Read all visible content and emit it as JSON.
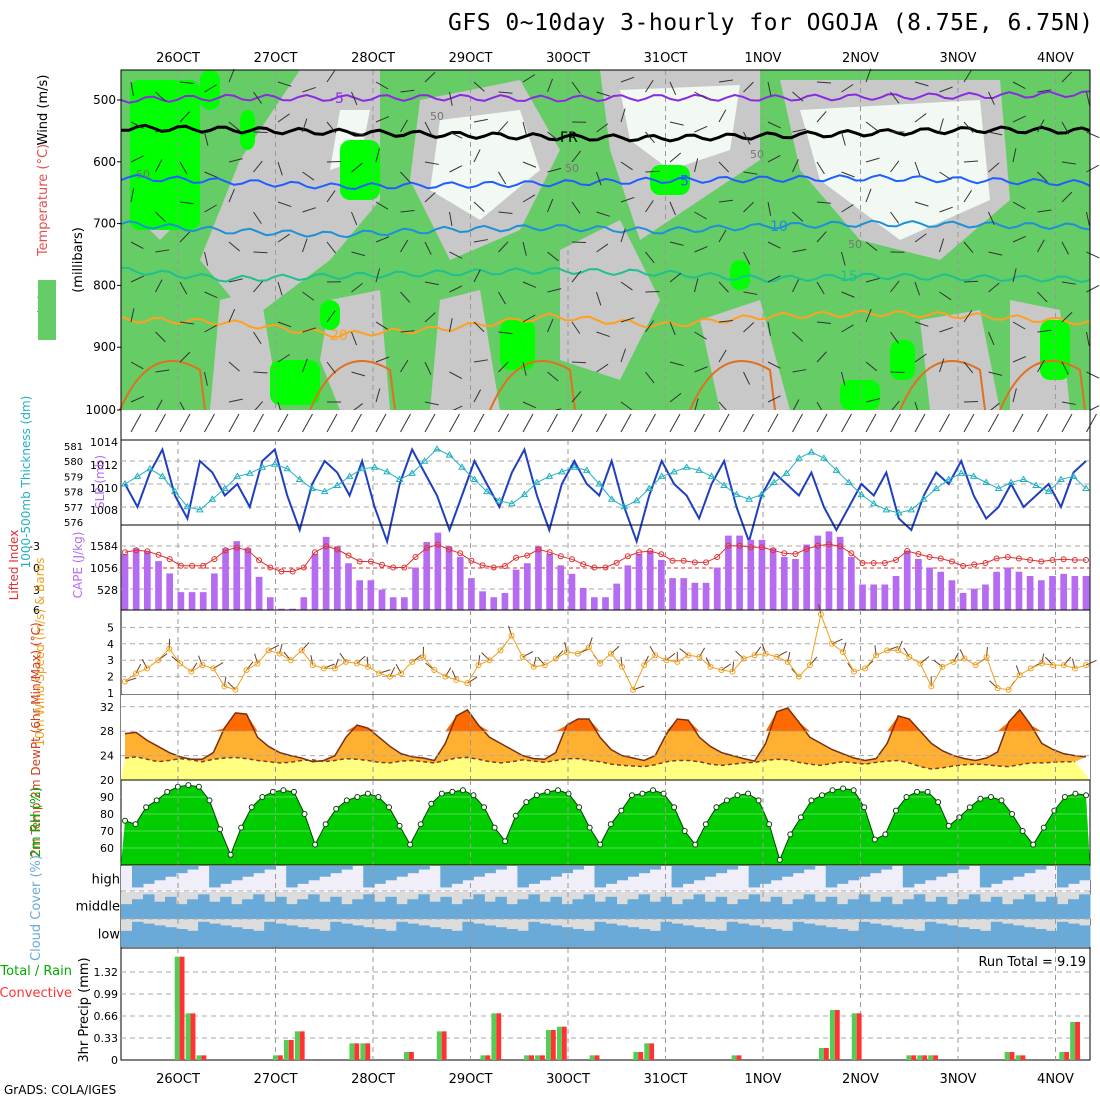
{
  "title": "GFS 0~10day 3-hourly for OGOJA (8.75E, 6.75N)",
  "credit": "GrADS: COLA/IGES",
  "dates": [
    "26OCT",
    "27OCT",
    "28OCT",
    "29OCT",
    "30OCT",
    "31OCT",
    "1NOV",
    "2NOV",
    "3NOV",
    "4NOV"
  ],
  "colors": {
    "rh_light": "#cfe8cf",
    "rh_mid": "#66cc66",
    "rh_bright": "#00ff00",
    "grey": "#c8c8c8",
    "lifted": "#e03030",
    "cape": "#b56cf0",
    "slp": "#1f3fbf",
    "thick": "#22b0c0",
    "wind10": "#f0a020",
    "temp_dark": "#ff6a00",
    "temp_mid": "#ffb030",
    "dew_fill": "#ffff80",
    "rh2m": "#00aa00",
    "cloud": "#6aaad8",
    "cloud_grey": "#dcdcdc",
    "precip_total": "#55cc55",
    "precip_conv": "#ff3333"
  },
  "chart_data": [
    {
      "type": "contour",
      "panel": "upper-air",
      "ylabel": "(millibars)",
      "legend": [
        "RH (%)",
        "Temperature (°C)",
        "Wind (m/s)"
      ],
      "y_ticks": [
        500,
        600,
        700,
        800,
        900,
        1000
      ],
      "temperature_labels": [
        "-5",
        "FR",
        "5",
        "10",
        "15",
        "20"
      ],
      "rh_labels": [
        "50"
      ],
      "isotherms": [
        {
          "label": "-5",
          "color": "#8a2be2",
          "levels": [
            500,
            496,
            497,
            496,
            498,
            496,
            497,
            495,
            493,
            490
          ]
        },
        {
          "label": "FR",
          "color": "#000000",
          "levels": [
            545,
            548,
            552,
            556,
            560,
            562,
            558,
            553,
            548,
            550
          ]
        },
        {
          "label": "5",
          "color": "#1f5fff",
          "levels": [
            625,
            632,
            640,
            638,
            635,
            630,
            628,
            626,
            630,
            635
          ]
        },
        {
          "label": "10",
          "color": "#1e90d8",
          "levels": [
            700,
            712,
            718,
            710,
            706,
            712,
            704,
            700,
            702,
            705
          ]
        },
        {
          "label": "15",
          "color": "#20c090",
          "levels": [
            775,
            790,
            785,
            780,
            776,
            780,
            790,
            785,
            788,
            790
          ]
        },
        {
          "label": "20",
          "color": "#ffa020",
          "levels": [
            855,
            860,
            880,
            870,
            850,
            865,
            850,
            845,
            850,
            860
          ]
        }
      ]
    },
    {
      "type": "line",
      "panel": "slp-thickness",
      "y_left_label": "1000-500mb Thickness (dm)",
      "y_right_label": "SLP (mb)",
      "thickness_ticks": [
        "581",
        "580",
        "579",
        "578",
        "577",
        "576"
      ],
      "slp_ticks": [
        "1014",
        "1012",
        "1010",
        "1008"
      ],
      "slp": [
        1010,
        1008,
        1011,
        1013,
        1009,
        1007,
        1012,
        1011,
        1009,
        1010,
        1008,
        1012,
        1013,
        1009,
        1006,
        1010,
        1012,
        1011,
        1009,
        1012,
        1008,
        1005,
        1010,
        1013,
        1011,
        1009,
        1006,
        1009,
        1012,
        1010,
        1008,
        1011,
        1013,
        1009,
        1006,
        1010,
        1012,
        1010,
        1009,
        1012,
        1008,
        1005,
        1009,
        1012,
        1010,
        1009,
        1007,
        1010,
        1012,
        1008,
        1005,
        1009,
        1011,
        1010,
        1009,
        1011,
        1008,
        1006,
        1008,
        1010,
        1009,
        1011,
        1007,
        1006,
        1009,
        1011,
        1010,
        1012,
        1009,
        1007,
        1008,
        1010,
        1008,
        1009,
        1010,
        1008,
        1011,
        1012
      ],
      "thickness": [
        578.5,
        579,
        579.5,
        579,
        578,
        577,
        576.8,
        577.5,
        578.2,
        579,
        579.2,
        579.6,
        579.8,
        579.5,
        578.8,
        578.2,
        578.0,
        578.4,
        579.0,
        579.5,
        579.6,
        579.3,
        578.8,
        579.2,
        580.0,
        580.8,
        580.4,
        579.6,
        578.8,
        578.0,
        577.4,
        577.2,
        577.8,
        578.6,
        579.0,
        579.3,
        579.6,
        579.4,
        578.5,
        577.5,
        577.0,
        577.4,
        578.2,
        579.0,
        579.3,
        579.6,
        579.4,
        579.0,
        578.4,
        577.8,
        577.5,
        577.8,
        578.6,
        579.2,
        580.2,
        580.6,
        580.2,
        579.4,
        578.6,
        577.8,
        577.2,
        576.8,
        576.6,
        576.8,
        577.5,
        578.2,
        578.8,
        579.2,
        579.0,
        578.6,
        578.2,
        578.6,
        578.8,
        578.4,
        578.0,
        578.8,
        579.0,
        578.2
      ]
    },
    {
      "type": "bar",
      "panel": "cape-lifted",
      "y_left_label": "Lifted Index",
      "y_right_label": "CAPE (J/kg)",
      "lifted_ticks": [
        "-3",
        "0",
        "3",
        "6"
      ],
      "cape_ticks": [
        "1584",
        "1056",
        "528"
      ],
      "cape": [
        1320,
        1450,
        1380,
        1150,
        860,
        420,
        420,
        420,
        860,
        1450,
        1620,
        1450,
        780,
        300,
        30,
        30,
        300,
        1320,
        1720,
        1500,
        1100,
        700,
        700,
        480,
        300,
        300,
        1000,
        1600,
        1820,
        1500,
        1250,
        750,
        440,
        300,
        400,
        950,
        1100,
        1500,
        1320,
        1050,
        850,
        520,
        300,
        300,
        620,
        1050,
        1320,
        1400,
        1180,
        750,
        750,
        640,
        640,
        1000,
        1750,
        1750,
        1650,
        1650,
        1450,
        1250,
        1200,
        1540,
        1750,
        1850,
        1720,
        1250,
        600,
        600,
        600,
        800,
        1400,
        1200,
        1000,
        900,
        700,
        400,
        500,
        600,
        900,
        1000,
        900,
        800,
        700,
        800,
        850,
        800,
        800
      ]
    },
    {
      "type": "line",
      "panel": "wind10m",
      "ylabel": "10m Wind Speed (m/s) & Barbs",
      "y_ticks": [
        "5",
        "4",
        "3",
        "2",
        "1"
      ],
      "speed": [
        1.7,
        2.2,
        2.5,
        3.0,
        3.7,
        2.8,
        2.3,
        2.7,
        2.5,
        1.4,
        1.2,
        2.4,
        2.8,
        3.6,
        3.4,
        3.0,
        3.6,
        2.7,
        2.5,
        2.5,
        2.9,
        2.8,
        2.6,
        2.2,
        2.0,
        2.2,
        2.9,
        3.2,
        2.4,
        2.0,
        1.8,
        1.6,
        2.7,
        3.0,
        3.6,
        4.5,
        3.2,
        2.6,
        2.7,
        3.1,
        3.5,
        3.4,
        3.8,
        2.8,
        3.4,
        2.6,
        1.2,
        2.7,
        3.3,
        3.0,
        2.9,
        3.3,
        3.2,
        2.6,
        2.4,
        2.3,
        3.1,
        3.3,
        3.4,
        3.2,
        2.9,
        2.0,
        2.7,
        5.8,
        4.0,
        3.5,
        2.3,
        2.5,
        3.3,
        3.6,
        3.6,
        3.2,
        2.8,
        1.4,
        2.6,
        2.9,
        3.1,
        2.7,
        3.2,
        1.3,
        1.2,
        2.1,
        2.5,
        2.8,
        2.7,
        2.7,
        2.5,
        2.7
      ]
    },
    {
      "type": "area",
      "panel": "temperature",
      "ylabel": "2m Temp 2m DewPt (6hr Min/Max) (°C)",
      "y_ticks": [
        "32",
        "28",
        "24",
        "20"
      ],
      "temp": [
        27.6,
        27.8,
        26.5,
        25.5,
        24.5,
        23.8,
        23.4,
        23.4,
        24.5,
        28.5,
        31.0,
        30.8,
        27.0,
        25.5,
        24.5,
        24.0,
        23.6,
        23.0,
        23.2,
        24.0,
        27.0,
        29.0,
        28.5,
        27.0,
        25.5,
        24.3,
        23.8,
        23.6,
        23.2,
        26.0,
        30.5,
        31.5,
        29.0,
        27.0,
        26.0,
        25.0,
        24.0,
        23.5,
        23.4,
        24.5,
        29.0,
        30.0,
        30.0,
        27.0,
        25.0,
        24.0,
        23.6,
        23.2,
        24.0,
        27.5,
        30.0,
        29.8,
        27.0,
        25.5,
        24.5,
        24.0,
        23.5,
        23.1,
        26.0,
        31.2,
        31.8,
        29.5,
        27.0,
        26.0,
        25.0,
        24.3,
        23.6,
        23.2,
        23.5,
        26.0,
        30.5,
        30.0,
        28.0,
        26.0,
        24.8,
        24.0,
        23.5,
        23.2,
        23.6,
        24.6,
        29.5,
        31.5,
        29.0,
        26.0,
        25.0,
        24.3,
        24.0,
        23.8
      ],
      "dewpt": [
        23.6,
        23.8,
        23.4,
        23.0,
        23.2,
        23.5,
        23.3,
        23.0,
        23.4,
        23.6,
        23.7,
        23.5,
        23.2,
        23.0,
        22.8,
        22.9,
        23.2,
        23.3,
        23.0,
        23.2,
        23.5,
        23.4,
        23.2,
        22.9,
        22.8,
        23.1,
        23.2,
        23.0,
        22.8,
        23.2,
        23.6,
        23.7,
        23.4,
        23.0,
        22.8,
        23.0,
        23.3,
        23.1,
        22.9,
        23.2,
        23.5,
        23.5,
        23.2,
        23.0,
        22.6,
        22.4,
        22.3,
        22.2,
        22.5,
        23.0,
        23.2,
        23.2,
        23.0,
        22.6,
        22.4,
        22.6,
        22.8,
        22.9,
        23.2,
        23.4,
        23.3,
        22.9,
        22.6,
        22.4,
        22.7,
        23.0,
        22.8,
        22.6,
        22.9,
        23.1,
        23.2,
        22.8,
        22.2,
        21.8,
        22.0,
        22.3,
        22.5,
        22.6,
        22.5,
        22.3,
        22.2,
        22.5,
        22.8,
        22.8,
        22.9,
        23.0,
        23.0
      ]
    },
    {
      "type": "area",
      "panel": "rh2m",
      "ylabel": "2m RH (%)",
      "y_ticks": [
        "90",
        "80",
        "70",
        "60"
      ],
      "rh": [
        76,
        74,
        84,
        88,
        93,
        96,
        97,
        96,
        88,
        71,
        56,
        72,
        84,
        90,
        93,
        94,
        93,
        80,
        62,
        74,
        83,
        88,
        90,
        92,
        90,
        84,
        73,
        62,
        74,
        86,
        92,
        93,
        94,
        91,
        84,
        72,
        64,
        79,
        87,
        91,
        93,
        94,
        92,
        84,
        72,
        62,
        74,
        82,
        91,
        92,
        94,
        92,
        84,
        70,
        62,
        74,
        84,
        88,
        91,
        92,
        88,
        74,
        53,
        68,
        78,
        88,
        91,
        94,
        95,
        94,
        84,
        65,
        68,
        82,
        90,
        93,
        93,
        87,
        73,
        78,
        84,
        89,
        90,
        88,
        80,
        70,
        62,
        72,
        82,
        90,
        92,
        91
      ]
    },
    {
      "type": "heatmap",
      "panel": "cloud-cover",
      "ylabel": "Cloud Cover (%)",
      "rows": [
        "high",
        "middle",
        "low"
      ]
    },
    {
      "type": "bar",
      "panel": "precip",
      "ylabel": "3hr Precip (mm)",
      "legend": [
        "Total / Rain",
        "Convective"
      ],
      "y_ticks": [
        "1.32",
        "0.99",
        "0.66",
        "0.33",
        "0"
      ],
      "run_total_label": "Run Total = 9.19",
      "precip": [
        0,
        0,
        0,
        0,
        0,
        1.55,
        0.7,
        0.07,
        0,
        0,
        0,
        0,
        0,
        0,
        0.07,
        0.3,
        0.43,
        0,
        0,
        0,
        0,
        0.25,
        0.25,
        0,
        0,
        0,
        0.12,
        0,
        0,
        0.43,
        0,
        0,
        0,
        0.07,
        0.7,
        0,
        0,
        0.07,
        0.07,
        0.45,
        0.5,
        0,
        0,
        0.07,
        0,
        0,
        0,
        0.12,
        0.25,
        0,
        0,
        0,
        0,
        0,
        0,
        0,
        0.07,
        0,
        0,
        0,
        0,
        0,
        0,
        0,
        0.18,
        0.75,
        0,
        0.7,
        0,
        0,
        0,
        0,
        0.07,
        0.07,
        0.07,
        0,
        0,
        0,
        0,
        0,
        0,
        0.12,
        0.07,
        0,
        0,
        0,
        0.12,
        0.57,
        0
      ]
    }
  ]
}
